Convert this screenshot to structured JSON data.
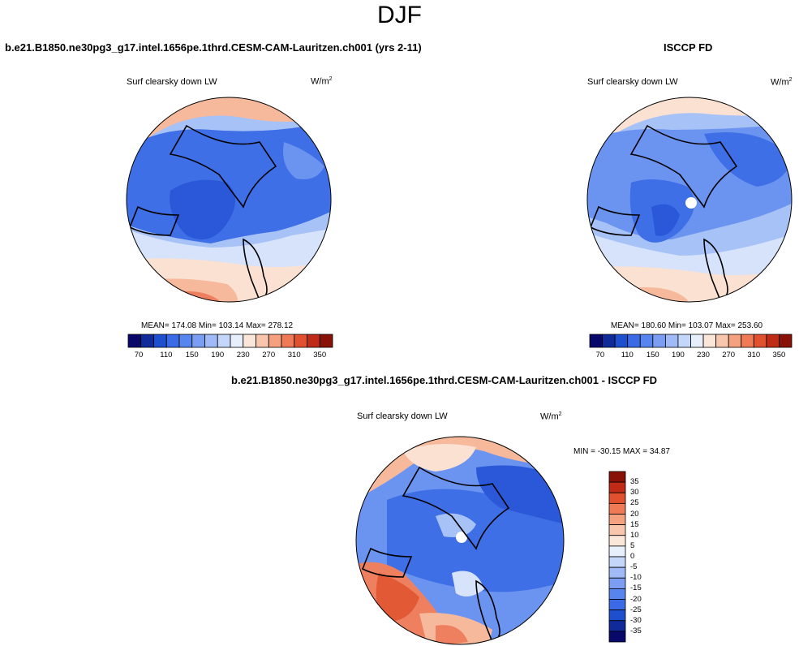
{
  "season": "DJF",
  "panels": [
    {
      "id": "model",
      "case_title": "b.e21.B1850.ne30pg3_g17.intel.1656pe.1thrd.CESM-CAM-Lauritzen.ch001 (yrs 2-11)",
      "left_label": "Surf clearsky down LW",
      "units_base": "W/m",
      "units_exp": "2",
      "stats": "MEAN= 174.08  Min= 103.14  Max= 278.12"
    },
    {
      "id": "obs",
      "case_title": "ISCCP FD",
      "left_label": "Surf clearsky down LW",
      "units_base": "W/m",
      "units_exp": "2",
      "stats": "MEAN= 180.60  Min= 103.07  Max= 253.60"
    },
    {
      "id": "diff",
      "case_title": "b.e21.B1850.ne30pg3_g17.intel.1656pe.1thrd.CESM-CAM-Lauritzen.ch001 - ISCCP FD",
      "left_label": "Surf clearsky down LW",
      "units_base": "W/m",
      "units_exp": "2",
      "stats": "MIN = -30.15 MAX =  34.87"
    }
  ],
  "field_colorbar": {
    "colors": [
      "#08086b",
      "#102a9a",
      "#1d4fce",
      "#3a6ae6",
      "#5884ee",
      "#7b9ef3",
      "#9fbaf6",
      "#c4d6fa",
      "#e7eefc",
      "#fbe6da",
      "#f8c6ad",
      "#f5a07e",
      "#ef7a55",
      "#e2512f",
      "#bf2b17",
      "#8a1108"
    ],
    "tick_labels": [
      "70",
      "110",
      "150",
      "190",
      "230",
      "270",
      "310",
      "350"
    ]
  },
  "diff_colorbar": {
    "colors": [
      "#08086b",
      "#102a9a",
      "#1d4fce",
      "#3a6ae6",
      "#5884ee",
      "#7b9ef3",
      "#9fbaf6",
      "#c4d6fa",
      "#e7eefc",
      "#fbe6da",
      "#f8c6ad",
      "#f5a07e",
      "#ef7a55",
      "#e2512f",
      "#bf2b17",
      "#8a1108"
    ],
    "tick_labels": [
      "35",
      "30",
      "25",
      "20",
      "15",
      "10",
      "5",
      "0",
      "-5",
      "-10",
      "-15",
      "-20",
      "-25",
      "-30",
      "-35"
    ]
  },
  "map_colors": {
    "deep_blue": "#2a58d8",
    "blue": "#3f6fe6",
    "mid_blue": "#6b93f0",
    "light_blue": "#a7c2f7",
    "pale_blue": "#d6e3fb",
    "pale_orange": "#fbe1d2",
    "light_orange": "#f6b99c",
    "orange": "#ee8060",
    "red_orange": "#e25a35"
  }
}
